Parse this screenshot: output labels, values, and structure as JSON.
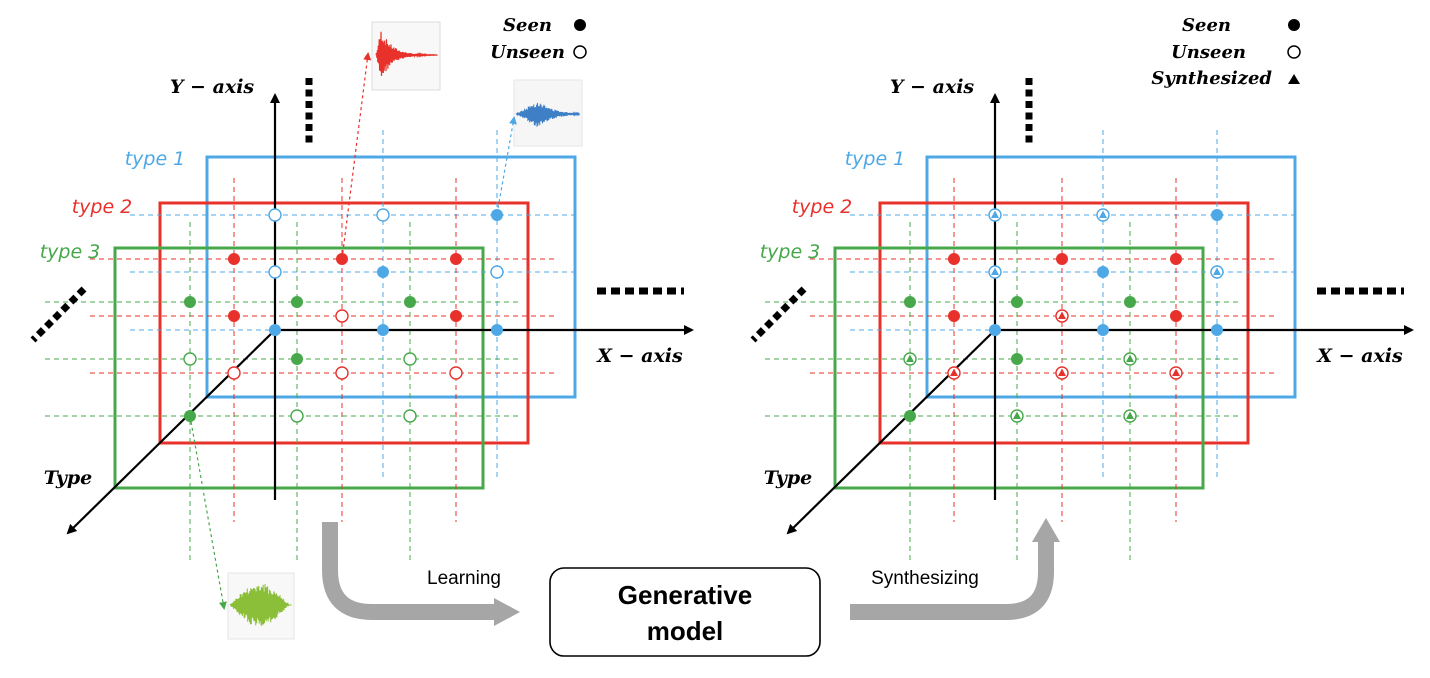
{
  "legend_left": {
    "seen": "Seen",
    "unseen": "Unseen"
  },
  "legend_right": {
    "seen": "Seen",
    "unseen": "Unseen",
    "synthesized": "Synthesized"
  },
  "axes": {
    "y": "Y − axis",
    "x": "X − axis",
    "type": "Type"
  },
  "types": [
    {
      "label": "type 1",
      "color": "#4ea8e6"
    },
    {
      "label": "type 2",
      "color": "#e8312a"
    },
    {
      "label": "type 3",
      "color": "#46a84a"
    }
  ],
  "center": {
    "line1": "Generative",
    "line2": "model"
  },
  "arrows": {
    "learning": "Learning",
    "synthesizing": "Synthesizing"
  },
  "waveform_colors": {
    "red": "#e8312a",
    "blue": "#3f7fc5",
    "green": "#8bbf3a"
  }
}
